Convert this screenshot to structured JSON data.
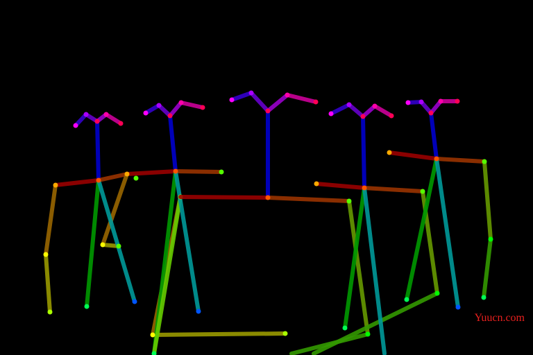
{
  "watermark": "Yuucn.com"
}
